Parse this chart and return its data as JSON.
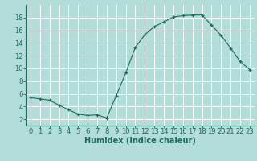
{
  "x": [
    0,
    1,
    2,
    3,
    4,
    5,
    6,
    7,
    8,
    9,
    10,
    11,
    12,
    13,
    14,
    15,
    16,
    17,
    18,
    19,
    20,
    21,
    22,
    23
  ],
  "y": [
    5.4,
    5.2,
    5.0,
    4.2,
    3.5,
    2.8,
    2.6,
    2.7,
    2.2,
    5.7,
    9.3,
    13.3,
    15.3,
    16.6,
    17.3,
    18.1,
    18.3,
    18.4,
    18.4,
    16.8,
    15.2,
    13.2,
    11.1,
    9.8
  ],
  "xlabel": "Humidex (Indice chaleur)",
  "ylim": [
    1,
    20
  ],
  "xlim": [
    -0.5,
    23.5
  ],
  "line_color": "#1a6b5e",
  "bg_color": "#b2ddd8",
  "grid_color": "#ffffff",
  "yticks": [
    2,
    4,
    6,
    8,
    10,
    12,
    14,
    16,
    18
  ],
  "xticks": [
    0,
    1,
    2,
    3,
    4,
    5,
    6,
    7,
    8,
    9,
    10,
    11,
    12,
    13,
    14,
    15,
    16,
    17,
    18,
    19,
    20,
    21,
    22,
    23
  ],
  "tick_fontsize": 6,
  "xlabel_fontsize": 7
}
